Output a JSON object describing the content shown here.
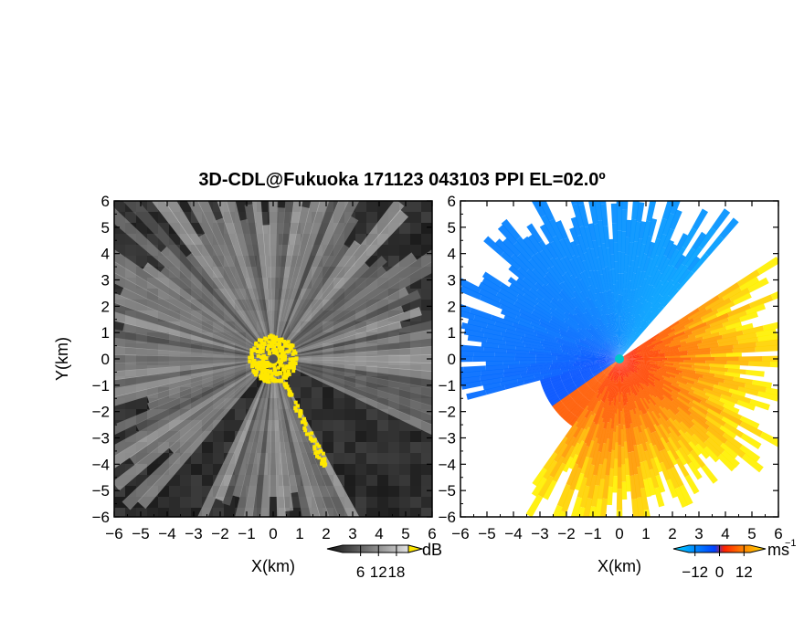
{
  "title": "3D-CDL@Fukuoka 171123 043103 PPI EL=02.0º",
  "chart_data": [
    {
      "type": "heatmap",
      "panel": "reflectivity",
      "xlabel": "X(km)",
      "ylabel": "Y(km)",
      "xlim": [
        -6,
        6
      ],
      "ylim": [
        -6,
        6
      ],
      "x_ticks": [
        "−6",
        "−5",
        "−4",
        "−3",
        "−2",
        "−1",
        "0",
        "1",
        "2",
        "3",
        "4",
        "5",
        "6"
      ],
      "y_ticks": [
        "6",
        "5",
        "4",
        "3",
        "2",
        "1",
        "0",
        "−1",
        "−2",
        "−3",
        "−4",
        "−5",
        "−6"
      ],
      "colorbar": {
        "unit": "dB",
        "ticks": [
          "6",
          "12",
          "18"
        ],
        "tick_values": [
          6,
          12,
          18
        ],
        "range": [
          0,
          22
        ],
        "colors": [
          "#111111",
          "#555555",
          "#aaaaaa",
          "#eeeeee",
          "#ffe800"
        ]
      },
      "no_data_sectors_deg": [
        [
          115,
          150
        ],
        [
          205,
          220
        ]
      ],
      "near_range_color": "#ffe800"
    },
    {
      "type": "heatmap",
      "panel": "doppler_velocity",
      "xlabel": "X(km)",
      "xlim": [
        -6,
        6
      ],
      "ylim": [
        -6,
        6
      ],
      "x_ticks": [
        "−6",
        "−5",
        "−4",
        "−3",
        "−2",
        "−1",
        "0",
        "1",
        "2",
        "3",
        "4",
        "5",
        "6"
      ],
      "y_ticks": [
        "6",
        "5",
        "4",
        "3",
        "2",
        "1",
        "0",
        "−1",
        "−2",
        "−3",
        "−4",
        "−5",
        "−6"
      ],
      "colorbar": {
        "unit": "ms",
        "unit_superscript": "−1",
        "ticks": [
          "−12",
          "0",
          "12"
        ],
        "tick_values": [
          -12,
          0,
          12
        ],
        "range": [
          -15,
          15
        ],
        "colors": [
          "#00d8ff",
          "#0040ff",
          "#ff2000",
          "#ff8000",
          "#ffe000"
        ]
      },
      "radar_marker_color": "#00c8c8"
    }
  ]
}
